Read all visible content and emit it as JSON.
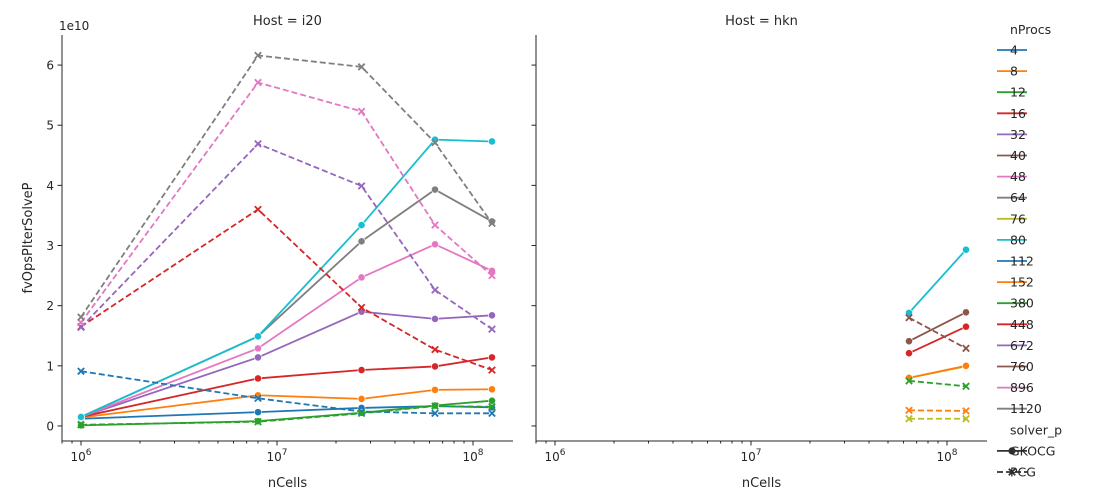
{
  "chart_data": {
    "type": "line",
    "panels": [
      {
        "title": "Host = i20",
        "host": "i20"
      },
      {
        "title": "Host = hkn",
        "host": "hkn"
      }
    ],
    "xlabel": "nCells",
    "ylabel": "fvOpsPIterSolveP",
    "xscale": "log",
    "xlim": [
      800000,
      160000000
    ],
    "ylim": [
      -2500000000,
      65000000000
    ],
    "y_offset_label": "1e10",
    "x_ticks": [
      {
        "value": 1000000,
        "base": "10",
        "exp": "6"
      },
      {
        "value": 10000000,
        "base": "10",
        "exp": "7"
      },
      {
        "value": 100000000,
        "base": "10",
        "exp": "8"
      }
    ],
    "y_ticks": [
      {
        "value": 0,
        "label": "0"
      },
      {
        "value": 10000000000,
        "label": "1"
      },
      {
        "value": 20000000000,
        "label": "2"
      },
      {
        "value": 30000000000,
        "label": "3"
      },
      {
        "value": 40000000000,
        "label": "4"
      },
      {
        "value": 50000000000,
        "label": "5"
      },
      {
        "value": 60000000000,
        "label": "6"
      }
    ],
    "hue_title": "nProcs",
    "style_title": "solver_p",
    "styles": [
      {
        "name": "GKOCG",
        "marker": "circle",
        "dash": "none"
      },
      {
        "name": "PCG",
        "marker": "x",
        "dash": "dashed"
      }
    ],
    "nprocs": [
      {
        "label": "4",
        "color": "#1f77b4"
      },
      {
        "label": "8",
        "color": "#ff7f0e"
      },
      {
        "label": "12",
        "color": "#2ca02c"
      },
      {
        "label": "16",
        "color": "#d62728"
      },
      {
        "label": "32",
        "color": "#9467bd"
      },
      {
        "label": "40",
        "color": "#8c564b"
      },
      {
        "label": "48",
        "color": "#e377c2"
      },
      {
        "label": "64",
        "color": "#7f7f7f"
      },
      {
        "label": "76",
        "color": "#bcbd22"
      },
      {
        "label": "80",
        "color": "#17becf"
      },
      {
        "label": "112",
        "color": "#1f77b4"
      },
      {
        "label": "152",
        "color": "#ff7f0e"
      },
      {
        "label": "380",
        "color": "#2ca02c"
      },
      {
        "label": "448",
        "color": "#d62728"
      },
      {
        "label": "672",
        "color": "#9467bd"
      },
      {
        "label": "760",
        "color": "#8c564b"
      },
      {
        "label": "896",
        "color": "#e377c2"
      },
      {
        "label": "1120",
        "color": "#7f7f7f"
      }
    ],
    "series": [
      {
        "panel": 0,
        "nprocs": "4",
        "solver": "GKOCG",
        "x": [
          1000000,
          8000000,
          27000000,
          64000000,
          125000000
        ],
        "y": [
          1200000000,
          2300000000,
          3000000000,
          3300000000,
          3100000000
        ]
      },
      {
        "panel": 0,
        "nprocs": "8",
        "solver": "GKOCG",
        "x": [
          1000000,
          8000000,
          27000000,
          64000000,
          125000000
        ],
        "y": [
          1400000000,
          5100000000,
          4500000000,
          6000000000,
          6100000000
        ]
      },
      {
        "panel": 0,
        "nprocs": "12",
        "solver": "GKOCG",
        "x": [
          1000000,
          8000000,
          27000000,
          64000000,
          125000000
        ],
        "y": [
          100000000,
          800000000,
          2200000000,
          3400000000,
          4200000000
        ]
      },
      {
        "panel": 0,
        "nprocs": "16",
        "solver": "GKOCG",
        "x": [
          1000000,
          8000000,
          27000000,
          64000000,
          125000000
        ],
        "y": [
          1500000000,
          7900000000,
          9300000000,
          9900000000,
          11400000000
        ]
      },
      {
        "panel": 0,
        "nprocs": "32",
        "solver": "GKOCG",
        "x": [
          1000000,
          8000000,
          27000000,
          64000000,
          125000000
        ],
        "y": [
          1500000000,
          11400000000,
          19000000000,
          17800000000,
          18400000000
        ]
      },
      {
        "panel": 0,
        "nprocs": "48",
        "solver": "GKOCG",
        "x": [
          1000000,
          8000000,
          27000000,
          64000000,
          125000000
        ],
        "y": [
          1500000000,
          12900000000,
          24700000000,
          30200000000,
          25800000000
        ]
      },
      {
        "panel": 0,
        "nprocs": "64",
        "solver": "GKOCG",
        "x": [
          1000000,
          8000000,
          27000000,
          64000000,
          125000000
        ],
        "y": [
          1500000000,
          14900000000,
          30700000000,
          39300000000,
          34000000000
        ]
      },
      {
        "panel": 0,
        "nprocs": "80",
        "solver": "GKOCG",
        "x": [
          1000000,
          8000000,
          27000000,
          64000000,
          125000000
        ],
        "y": [
          1500000000,
          14900000000,
          33400000000,
          47600000000,
          47300000000
        ]
      },
      {
        "panel": 0,
        "nprocs": "4",
        "solver": "PCG",
        "x": [
          1000000,
          8000000,
          27000000,
          64000000,
          125000000
        ],
        "y": [
          9100000000,
          4600000000,
          2400000000,
          2100000000,
          2100000000
        ]
      },
      {
        "panel": 0,
        "nprocs": "12",
        "solver": "PCG",
        "x": [
          1000000,
          8000000,
          27000000,
          64000000,
          125000000
        ],
        "y": [
          200000000,
          700000000,
          2100000000,
          3300000000,
          3200000000
        ]
      },
      {
        "panel": 0,
        "nprocs": "16",
        "solver": "PCG",
        "x": [
          1000000,
          8000000,
          27000000,
          64000000,
          125000000
        ],
        "y": [
          16500000000,
          36000000000,
          19700000000,
          12700000000,
          9300000000
        ]
      },
      {
        "panel": 0,
        "nprocs": "32",
        "solver": "PCG",
        "x": [
          1000000,
          8000000,
          27000000,
          64000000,
          125000000
        ],
        "y": [
          16400000000,
          46900000000,
          39900000000,
          22600000000,
          16100000000
        ]
      },
      {
        "panel": 0,
        "nprocs": "48",
        "solver": "PCG",
        "x": [
          1000000,
          8000000,
          27000000,
          64000000,
          125000000
        ],
        "y": [
          17200000000,
          57100000000,
          52300000000,
          33400000000,
          25000000000
        ]
      },
      {
        "panel": 0,
        "nprocs": "64",
        "solver": "PCG",
        "x": [
          1000000,
          8000000,
          27000000,
          64000000,
          125000000
        ],
        "y": [
          18100000000,
          61600000000,
          59700000000,
          47100000000,
          33700000000
        ]
      },
      {
        "panel": 1,
        "nprocs": "76",
        "solver": "GKOCG",
        "x": [
          64000000,
          125000000
        ],
        "y": [
          8000000000,
          9900000000
        ]
      },
      {
        "panel": 1,
        "nprocs": "152",
        "solver": "GKOCG",
        "x": [
          64000000,
          125000000
        ],
        "y": [
          8000000000,
          10000000000
        ]
      },
      {
        "panel": 1,
        "nprocs": "448",
        "solver": "GKOCG",
        "x": [
          64000000,
          125000000
        ],
        "y": [
          12100000000,
          16500000000
        ]
      },
      {
        "panel": 1,
        "nprocs": "760",
        "solver": "GKOCG",
        "x": [
          64000000,
          125000000
        ],
        "y": [
          14100000000,
          18900000000
        ]
      },
      {
        "panel": 1,
        "nprocs": "80",
        "solver": "GKOCG",
        "x": [
          64000000,
          125000000
        ],
        "y": [
          18800000000,
          29300000000
        ]
      },
      {
        "panel": 1,
        "nprocs": "76",
        "solver": "PCG",
        "x": [
          64000000,
          125000000
        ],
        "y": [
          1200000000,
          1200000000
        ]
      },
      {
        "panel": 1,
        "nprocs": "152",
        "solver": "PCG",
        "x": [
          64000000,
          125000000
        ],
        "y": [
          2600000000,
          2500000000
        ]
      },
      {
        "panel": 1,
        "nprocs": "380",
        "solver": "PCG",
        "x": [
          64000000,
          125000000
        ],
        "y": [
          7500000000,
          6600000000
        ]
      },
      {
        "panel": 1,
        "nprocs": "760",
        "solver": "PCG",
        "x": [
          64000000,
          125000000
        ],
        "y": [
          18000000000,
          12900000000
        ]
      }
    ]
  }
}
